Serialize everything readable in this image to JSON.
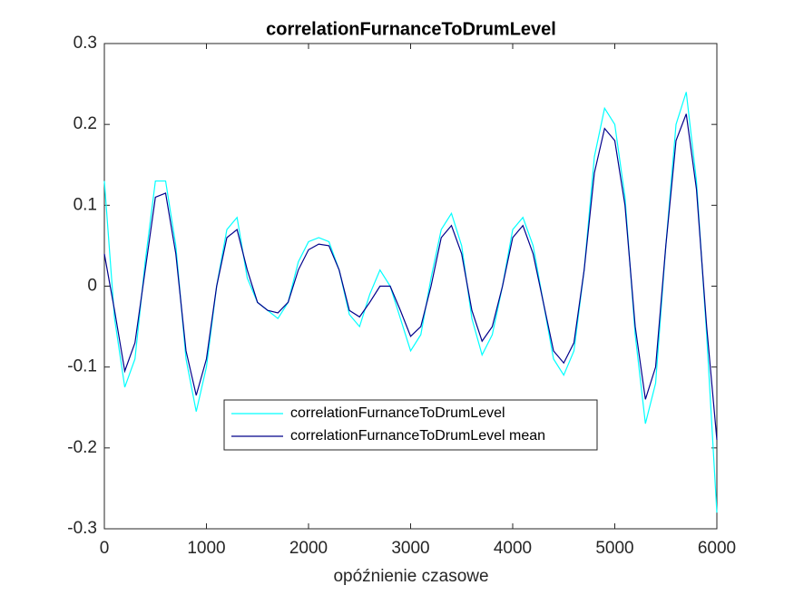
{
  "chart_data": {
    "type": "line",
    "title": "correlationFurnanceToDrumLevel",
    "xlabel": "opóźnienie czasowe",
    "x": [
      0,
      100,
      200,
      300,
      400,
      500,
      600,
      700,
      800,
      900,
      1000,
      1100,
      1200,
      1300,
      1400,
      1500,
      1600,
      1700,
      1800,
      1900,
      2000,
      2100,
      2200,
      2300,
      2400,
      2500,
      2600,
      2700,
      2800,
      2900,
      3000,
      3100,
      3200,
      3300,
      3400,
      3500,
      3600,
      3700,
      3800,
      3900,
      4000,
      4100,
      4200,
      4300,
      4400,
      4500,
      4600,
      4700,
      4800,
      4900,
      5000,
      5100,
      5200,
      5300,
      5400,
      5500,
      5600,
      5700,
      5800,
      5900,
      6000
    ],
    "series": [
      {
        "name": "correlationFurnanceToDrumLevel",
        "color": "#00ffff",
        "values": [
          0.13,
          -0.04,
          -0.125,
          -0.09,
          0.03,
          0.13,
          0.13,
          0.05,
          -0.09,
          -0.155,
          -0.1,
          0.0,
          0.07,
          0.085,
          0.01,
          -0.02,
          -0.03,
          -0.04,
          -0.02,
          0.03,
          0.055,
          0.06,
          0.055,
          0.02,
          -0.035,
          -0.05,
          -0.01,
          0.02,
          0.0,
          -0.04,
          -0.08,
          -0.06,
          0.01,
          0.07,
          0.09,
          0.05,
          -0.04,
          -0.085,
          -0.06,
          0.0,
          0.07,
          0.085,
          0.05,
          -0.02,
          -0.09,
          -0.11,
          -0.08,
          0.02,
          0.16,
          0.22,
          0.2,
          0.11,
          -0.06,
          -0.17,
          -0.12,
          0.05,
          0.2,
          0.24,
          0.13,
          -0.06,
          -0.28
        ]
      },
      {
        "name": "correlationFurnanceToDrumLevel mean",
        "color": "#00008b",
        "values": [
          0.04,
          -0.03,
          -0.105,
          -0.07,
          0.02,
          0.11,
          0.115,
          0.04,
          -0.08,
          -0.135,
          -0.09,
          0.0,
          0.06,
          0.07,
          0.02,
          -0.02,
          -0.03,
          -0.033,
          -0.02,
          0.02,
          0.045,
          0.052,
          0.05,
          0.02,
          -0.03,
          -0.038,
          -0.02,
          0.0,
          0.0,
          -0.03,
          -0.062,
          -0.05,
          0.0,
          0.06,
          0.075,
          0.04,
          -0.03,
          -0.068,
          -0.05,
          0.0,
          0.06,
          0.075,
          0.04,
          -0.02,
          -0.08,
          -0.095,
          -0.07,
          0.02,
          0.14,
          0.195,
          0.18,
          0.1,
          -0.05,
          -0.14,
          -0.1,
          0.05,
          0.18,
          0.213,
          0.12,
          -0.05,
          -0.19
        ]
      }
    ],
    "xlim": [
      0,
      6000
    ],
    "xticks": [
      0,
      1000,
      2000,
      3000,
      4000,
      5000,
      6000
    ],
    "ylim": [
      -0.3,
      0.3
    ],
    "yticks": [
      -0.3,
      -0.2,
      -0.1,
      0,
      0.1,
      0.2,
      0.3
    ],
    "grid": false
  }
}
